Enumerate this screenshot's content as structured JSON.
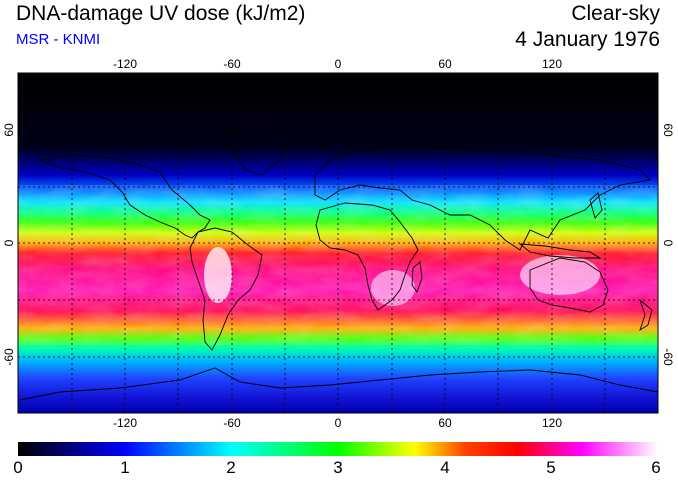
{
  "header": {
    "title": "DNA-damage UV dose (kJ/m2)",
    "source": "MSR - KNMI",
    "condition": "Clear-sky",
    "date": "4 January 1976"
  },
  "map": {
    "lon_ticks": [
      -120,
      -60,
      0,
      60,
      120
    ],
    "lat_ticks": [
      60,
      0,
      -60
    ],
    "lon_tick_labels": [
      "-120",
      "-60",
      "0",
      "60",
      "120"
    ],
    "lat_tick_labels": [
      "60",
      "0",
      "-60"
    ],
    "gridlines": "dotted",
    "lon_range": [
      -180,
      180
    ],
    "lat_range": [
      -90,
      90
    ]
  },
  "colorbar": {
    "labels": [
      "0",
      "1",
      "2",
      "3",
      "4",
      "5",
      "6"
    ],
    "range": [
      0,
      6
    ],
    "colors": [
      "#000000",
      "#0000ff",
      "#00ffff",
      "#00ff00",
      "#ffff00",
      "#ff0000",
      "#ff00ff",
      "#ffffff"
    ]
  }
}
